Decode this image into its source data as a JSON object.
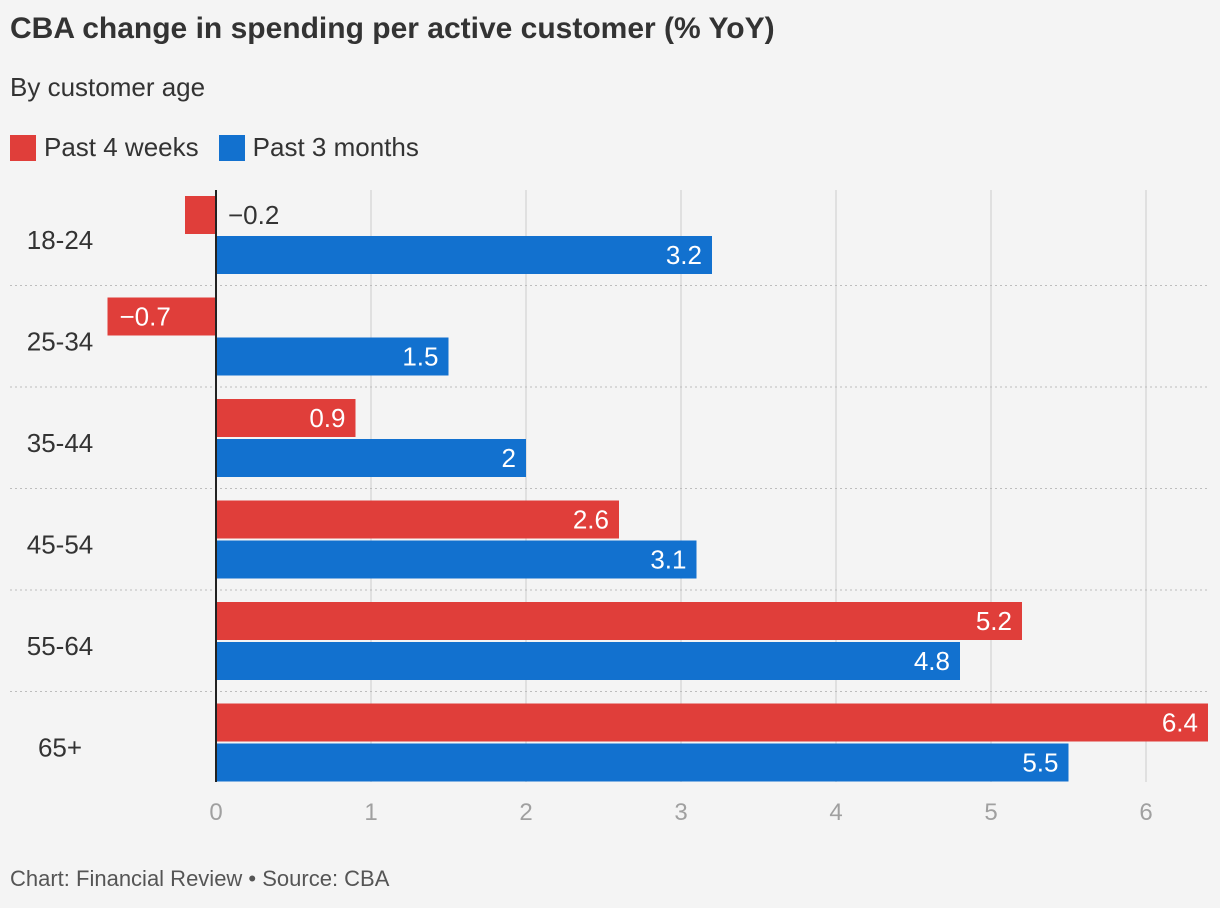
{
  "chart_data": {
    "type": "bar",
    "orientation": "horizontal",
    "title": "CBA change in spending per active customer (% YoY)",
    "subtitle": "By customer age",
    "categories": [
      "18-24",
      "25-34",
      "35-44",
      "45-54",
      "55-64",
      "65+"
    ],
    "series": [
      {
        "name": "Past 4 weeks",
        "color": "#e03e3a",
        "values": [
          -0.2,
          -0.7,
          0.9,
          2.6,
          5.2,
          6.4
        ],
        "labels": [
          "−0.2",
          "−0.7",
          "0.9",
          "2.6",
          "5.2",
          "6.4"
        ]
      },
      {
        "name": "Past 3 months",
        "color": "#1271cf",
        "values": [
          3.2,
          1.5,
          2,
          3.1,
          4.8,
          5.5
        ],
        "labels": [
          "3.2",
          "1.5",
          "2",
          "3.1",
          "4.8",
          "5.5"
        ]
      }
    ],
    "xlim": [
      -0.7,
      6.4
    ],
    "xticks": [
      0,
      1,
      2,
      3,
      4,
      5,
      6
    ],
    "grid": true,
    "legend": "top-left",
    "source": "Chart: Financial Review • Source: CBA"
  }
}
